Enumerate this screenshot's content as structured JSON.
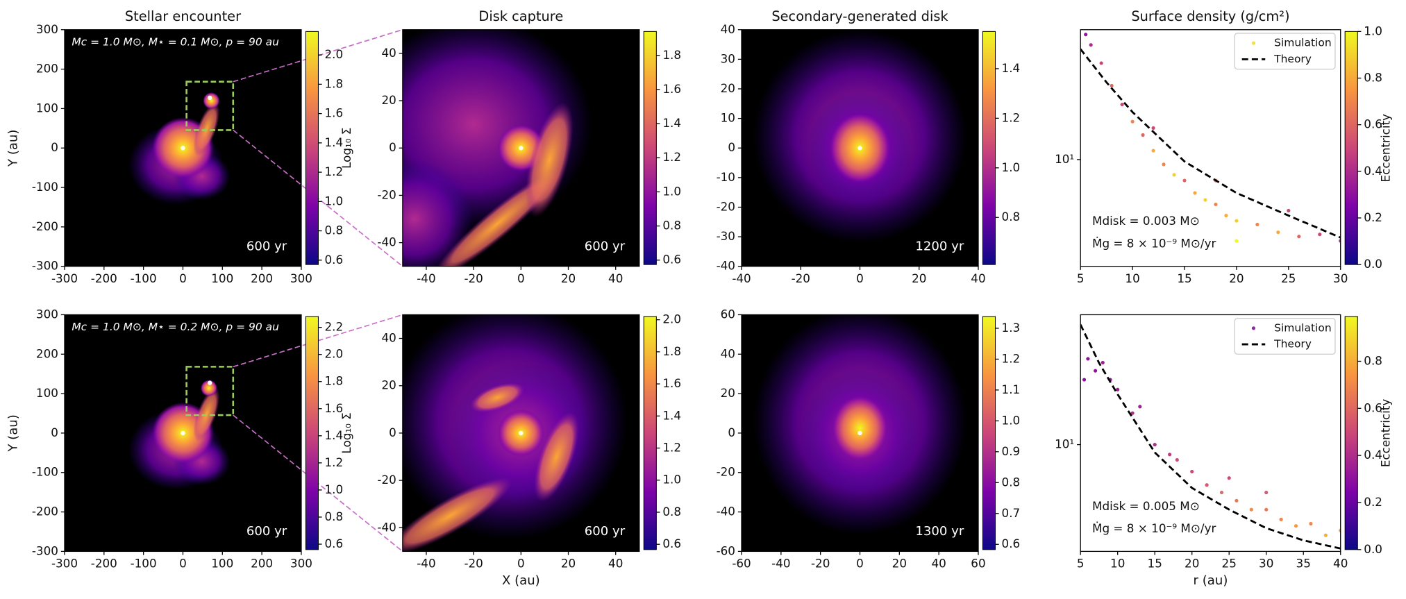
{
  "chart_data": [
    {
      "type": "image",
      "title": "Stellar encounter",
      "ylabel": "Y (au)",
      "annotation": "Mc = 1.0 M⊙,  M⋆ = 0.1 M⊙,  p = 90 au",
      "time": "600 yr",
      "xlim": [
        -300,
        300
      ],
      "ylim": [
        -300,
        300
      ],
      "xticks": [
        -300,
        -200,
        -100,
        0,
        100,
        200,
        300
      ],
      "yticks": [
        -300,
        -200,
        -100,
        0,
        100,
        200,
        300
      ],
      "colorbar": {
        "label": "Log₁₀ Σ",
        "lim": [
          0.57,
          2.16
        ],
        "ticks": [
          0.6,
          0.8,
          {
            "value": 1,
            "label": "1.0"
          },
          1.2,
          1.4,
          1.6,
          1.8,
          {
            "value": 2,
            "label": "2.0"
          }
        ]
      }
    },
    {
      "type": "image",
      "title": "Disk capture",
      "time": "600 yr",
      "xlim": [
        -50,
        50
      ],
      "ylim": [
        -50,
        50
      ],
      "xticks": [
        -40,
        -20,
        0,
        20,
        40
      ],
      "yticks": [
        -40,
        -20,
        0,
        20,
        40
      ],
      "colorbar": {
        "lim": [
          0.574,
          1.94
        ],
        "ticks": [
          0.6,
          0.8,
          {
            "value": 1,
            "label": "1.0"
          },
          1.2,
          1.4,
          1.6,
          1.8
        ]
      }
    },
    {
      "type": "image",
      "title": "Secondary-generated disk",
      "time": "1200 yr",
      "xlim": [
        -40,
        40
      ],
      "ylim": [
        -40,
        40
      ],
      "xticks": [
        -40,
        -20,
        0,
        20,
        40
      ],
      "yticks": [
        -40,
        -30,
        -20,
        -10,
        0,
        10,
        20,
        30,
        40
      ],
      "colorbar": {
        "lim": [
          0.61,
          1.55
        ],
        "ticks": [
          0.8,
          {
            "value": 1,
            "label": "1.0"
          },
          1.2,
          1.4
        ]
      }
    },
    {
      "type": "scatter",
      "title": "Surface density (g/cm²)",
      "log_y": true,
      "legend": "upper right",
      "annotations": [
        "Mdisk = 0.003 M⊙",
        "Ṁg = 8 × 10⁻⁹ M⊙/yr"
      ],
      "xlim": [
        5,
        30
      ],
      "ylim": [
        3.2,
        40
      ],
      "xticks": [
        5,
        10,
        15,
        20,
        25,
        30
      ],
      "yticks": [
        {
          "value": 10,
          "label": "10¹"
        }
      ],
      "series": [
        {
          "name": "Simulation",
          "color": "#f0e040",
          "x": [
            5.5,
            6,
            7,
            8,
            9,
            10,
            11,
            12,
            13,
            14,
            15,
            16,
            17,
            18,
            19,
            20,
            22,
            24,
            26,
            28,
            30,
            12,
            18,
            25,
            20
          ],
          "values": [
            38,
            34,
            28,
            22,
            18,
            15,
            13,
            11,
            9.5,
            8.5,
            8,
            7,
            6.5,
            6.2,
            5.5,
            5.2,
            5.0,
            4.6,
            4.4,
            4.5,
            4.2,
            14,
            8,
            5.8,
            4.2
          ],
          "c": [
            0.3,
            0.4,
            0.5,
            0.6,
            0.5,
            0.7,
            0.6,
            0.8,
            0.7,
            0.9,
            0.6,
            0.8,
            0.9,
            0.7,
            0.8,
            0.9,
            0.7,
            0.8,
            0.6,
            0.5,
            0.4,
            0.5,
            0.6,
            0.5,
            1.0
          ]
        },
        {
          "name": "Theory",
          "type": "line",
          "color": "#000000",
          "x": [
            5,
            7.5,
            10,
            15,
            20,
            25,
            30
          ],
          "values": [
            32.5,
            22.8,
            16.6,
            9.8,
            7.0,
            5.5,
            4.35
          ]
        }
      ],
      "colorbar": {
        "label": "Eccentricity",
        "lim": [
          0,
          1
        ],
        "ticks": [
          {
            "value": 0,
            "label": "0.0"
          },
          0.2,
          0.4,
          0.6,
          0.8,
          {
            "value": 1,
            "label": "1.0"
          }
        ]
      }
    },
    {
      "type": "image",
      "ylabel": "Y (au)",
      "annotation": "Mc = 1.0 M⊙,  M⋆ = 0.2 M⊙,  p = 90 au",
      "time": "600 yr",
      "xlim": [
        -300,
        300
      ],
      "ylim": [
        -300,
        300
      ],
      "xticks": [
        -300,
        -200,
        -100,
        0,
        100,
        200,
        300
      ],
      "yticks": [
        -300,
        -200,
        -100,
        0,
        100,
        200,
        300
      ],
      "colorbar": {
        "label": "Log₁₀ Σ",
        "lim": [
          0.56,
          2.28
        ],
        "ticks": [
          0.6,
          0.8,
          {
            "value": 1,
            "label": "1.0"
          },
          1.2,
          1.4,
          1.6,
          1.8,
          {
            "value": 2,
            "label": "2.0"
          },
          2.2
        ]
      }
    },
    {
      "type": "image",
      "xlabel": "X (au)",
      "time": "600 yr",
      "xlim": [
        -50,
        50
      ],
      "ylim": [
        -50,
        50
      ],
      "xticks": [
        -40,
        -20,
        0,
        20,
        40
      ],
      "yticks": [
        -40,
        -20,
        0,
        20,
        40
      ],
      "colorbar": {
        "lim": [
          0.567,
          2.02
        ],
        "ticks": [
          0.6,
          0.8,
          {
            "value": 1,
            "label": "1.0"
          },
          1.2,
          1.4,
          1.6,
          1.8,
          {
            "value": 2,
            "label": "2.0"
          }
        ]
      }
    },
    {
      "type": "image",
      "time": "1300 yr",
      "xlim": [
        -60,
        60
      ],
      "ylim": [
        -60,
        60
      ],
      "xticks": [
        -60,
        -40,
        -20,
        0,
        20,
        40,
        60
      ],
      "yticks": [
        -60,
        -40,
        -20,
        0,
        20,
        40,
        60
      ],
      "colorbar": {
        "lim": [
          0.583,
          1.338
        ],
        "ticks": [
          0.6,
          0.7,
          0.8,
          0.9,
          {
            "value": 1,
            "label": "1.0"
          },
          1.1,
          1.2,
          1.3
        ]
      }
    },
    {
      "type": "scatter",
      "xlabel": "r (au)",
      "log_y": true,
      "legend": "upper right",
      "annotations": [
        "Mdisk = 0.005 M⊙",
        "Ṁg = 8 × 10⁻⁹ M⊙/yr"
      ],
      "xlim": [
        5,
        40
      ],
      "ylim": [
        3.2,
        40
      ],
      "xticks": [
        5,
        10,
        15,
        20,
        25,
        30,
        35,
        40
      ],
      "yticks": [
        {
          "value": 10,
          "label": "10¹"
        }
      ],
      "series": [
        {
          "name": "Simulation",
          "color": "#8a2aa0",
          "x": [
            5.5,
            6,
            7,
            8,
            9,
            10,
            12,
            13,
            15,
            17,
            18,
            20,
            22,
            24,
            26,
            28,
            30,
            32,
            34,
            36,
            38,
            40,
            25,
            30
          ],
          "values": [
            20,
            25,
            22,
            24,
            20,
            18,
            14,
            15,
            10,
            9,
            8.5,
            7.5,
            6.5,
            6,
            5.5,
            5,
            5,
            4.5,
            4.2,
            4.3,
            3.8,
            4,
            7,
            6
          ],
          "c": [
            0.3,
            0.3,
            0.3,
            0.35,
            0.3,
            0.35,
            0.4,
            0.35,
            0.4,
            0.45,
            0.5,
            0.5,
            0.55,
            0.6,
            0.65,
            0.7,
            0.65,
            0.7,
            0.75,
            0.7,
            0.8,
            0.75,
            0.5,
            0.55
          ]
        },
        {
          "name": "Theory",
          "type": "line",
          "color": "#000000",
          "x": [
            5,
            7.5,
            10,
            15,
            20,
            25,
            30,
            35,
            40
          ],
          "values": [
            36,
            23.9,
            17.1,
            9.2,
            6.3,
            5.0,
            4.1,
            3.6,
            3.3
          ]
        }
      ],
      "colorbar": {
        "label": "Eccentricity",
        "lim": [
          0,
          0.99
        ],
        "ticks": [
          {
            "value": 0,
            "label": "0.0"
          },
          0.2,
          0.4,
          0.6,
          0.8
        ]
      }
    }
  ]
}
